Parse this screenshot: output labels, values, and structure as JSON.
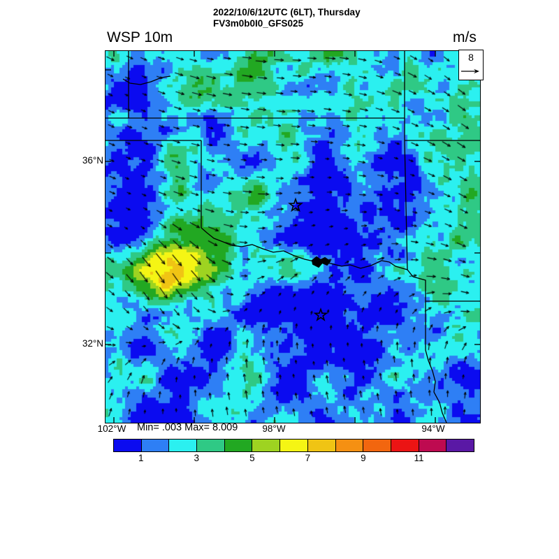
{
  "header": {
    "title_line1": "2022/10/6/12UTC (6LT), Thursday",
    "title_line2": "FV3m0b0I0_GFS025",
    "variable_label": "WSP 10m",
    "units_label": "m/s"
  },
  "map": {
    "min_max_label": "Min= .003 Max= 8.009",
    "reference_vector_label": "8",
    "lat_tick_labels": [
      "36°N",
      "32°N"
    ],
    "lon_tick_labels": [
      "102°W",
      "98°W",
      "94°W"
    ]
  },
  "colorbar": {
    "tick_labels": [
      "1",
      "3",
      "5",
      "7",
      "9",
      "11"
    ],
    "tick_values": [
      1,
      3,
      5,
      7,
      9,
      11
    ]
  },
  "chart_data": {
    "type": "heatmap",
    "title": "2022/10/6/12UTC (6LT), Thursday",
    "subtitle": "FV3m0b0I0_GFS025",
    "variable": "WSP 10m",
    "units": "m/s",
    "region": "Oklahoma / North Texas with state borders, city stars and Lake Texoma shown",
    "overlay": "wind vector arrows on regular grid",
    "min": 0.003,
    "max": 8.009,
    "reference_vector_mps": 8,
    "lat_ticks": [
      {
        "label": "36°N",
        "value": 36
      },
      {
        "label": "32°N",
        "value": 32
      }
    ],
    "lon_ticks": [
      {
        "label": "102°W",
        "value": -102
      },
      {
        "label": "98°W",
        "value": -98
      },
      {
        "label": "94°W",
        "value": -94
      }
    ],
    "lat_range_displayed": [
      30.3,
      38.4
    ],
    "lon_range_displayed": [
      -102.2,
      -92.9
    ],
    "grid_tick_interval_deg": 2,
    "colorbar_levels": [
      0,
      1,
      2,
      3,
      4,
      5,
      6,
      7,
      8,
      9,
      10,
      11,
      12
    ],
    "colorbar_tick_labels": [
      "1",
      "3",
      "5",
      "7",
      "9",
      "11"
    ],
    "colorbar_colors": [
      "#0b0bf0",
      "#2e7ff5",
      "#2bf0f0",
      "#2fc985",
      "#22a822",
      "#9ed321",
      "#f5f514",
      "#f0c414",
      "#f59012",
      "#f2660f",
      "#eb1414",
      "#be0a50",
      "#5a18a5"
    ],
    "legend_position": "bottom",
    "field_description": "10 m wind speed filled contours, mostly 1-3 m/s (blue/cyan), green patches 3-5 m/s, yellow-orange maximum 6-8 m/s in southwest quadrant"
  }
}
